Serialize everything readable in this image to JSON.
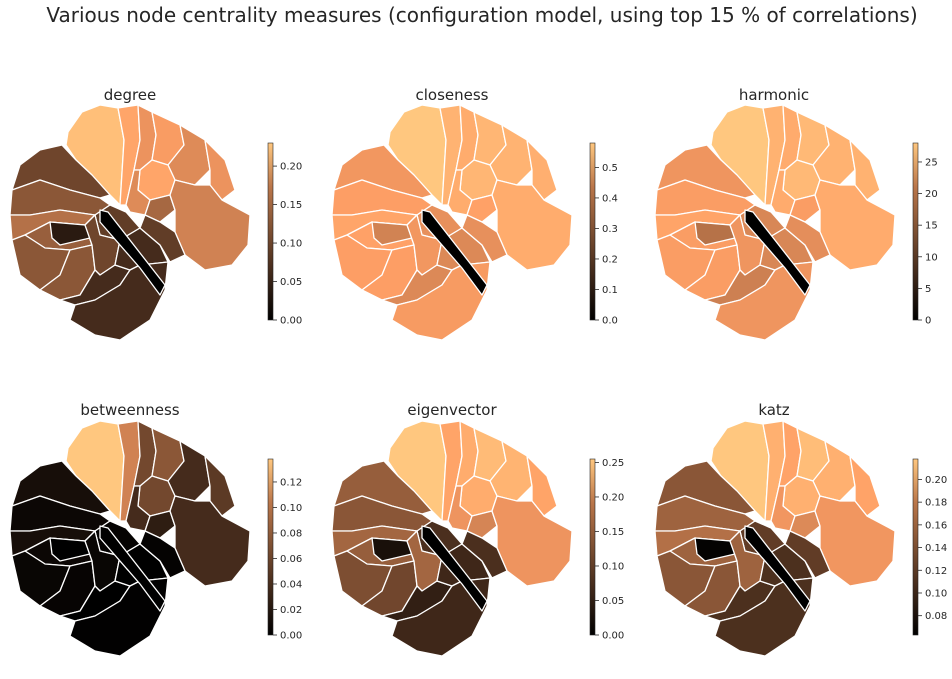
{
  "figure": {
    "title": "Various node centrality measures (configuration model, using top 15 % of correlations)",
    "colormap": "copper",
    "background": "#ffffff",
    "region_border_color": "#ffffff"
  },
  "chart_data": [
    {
      "type": "heatmap",
      "title": "degree",
      "colorbar": {
        "min": 0.0,
        "max": 0.23,
        "ticks": [
          0.0,
          0.05,
          0.1,
          0.15,
          0.2
        ],
        "tick_labels": [
          "0.00",
          "0.05",
          "0.10",
          "0.15",
          "0.20"
        ]
      },
      "region_values": [
        0.22,
        0.19,
        0.17,
        0.18,
        0.16,
        0.19,
        0.17,
        0.16,
        0.12,
        0.15,
        0.08,
        0.1,
        0.13,
        0.11,
        0.1,
        0.1,
        0.03,
        0.07,
        0.08,
        0.05,
        0.05,
        0.07,
        0.05,
        0.0
      ]
    },
    {
      "type": "heatmap",
      "title": "closeness",
      "colorbar": {
        "min": 0.0,
        "max": 0.58,
        "ticks": [
          0.0,
          0.1,
          0.2,
          0.3,
          0.4,
          0.5
        ],
        "tick_labels": [
          "0.0",
          "0.1",
          "0.2",
          "0.3",
          "0.4",
          "0.5"
        ]
      },
      "region_values": [
        0.58,
        0.52,
        0.5,
        0.53,
        0.52,
        0.53,
        0.51,
        0.5,
        0.47,
        0.5,
        0.44,
        0.46,
        0.48,
        0.47,
        0.46,
        0.46,
        0.38,
        0.42,
        0.44,
        0.4,
        0.4,
        0.42,
        0.45,
        0.0
      ]
    },
    {
      "type": "heatmap",
      "title": "harmonic",
      "colorbar": {
        "min": 0,
        "max": 28,
        "ticks": [
          0,
          5,
          10,
          15,
          20,
          25
        ],
        "tick_labels": [
          "0",
          "5",
          "10",
          "15",
          "20",
          "25"
        ]
      },
      "region_values": [
        28,
        25,
        24,
        26,
        25,
        26,
        25,
        24,
        22,
        24,
        21,
        22,
        23,
        22,
        22,
        22,
        16,
        19,
        21,
        18,
        19,
        20,
        21,
        0
      ]
    },
    {
      "type": "heatmap",
      "title": "betweenness",
      "colorbar": {
        "min": 0.0,
        "max": 0.138,
        "ticks": [
          0.0,
          0.02,
          0.04,
          0.06,
          0.08,
          0.1,
          0.12
        ],
        "tick_labels": [
          "0.00",
          "0.02",
          "0.04",
          "0.06",
          "0.08",
          "0.10",
          "0.12"
        ]
      },
      "region_values": [
        0.138,
        0.09,
        0.05,
        0.06,
        0.03,
        0.05,
        0.04,
        0.03,
        0.02,
        0.03,
        0.01,
        0.005,
        0.01,
        0.005,
        0.004,
        0.003,
        0.0,
        0.002,
        0.004,
        0.0,
        0.0,
        0.002,
        0.001,
        0.0
      ]
    },
    {
      "type": "heatmap",
      "title": "eigenvector",
      "colorbar": {
        "min": 0.0,
        "max": 0.255,
        "ticks": [
          0.0,
          0.05,
          0.1,
          0.15,
          0.2,
          0.25
        ],
        "tick_labels": [
          "0.00",
          "0.05",
          "0.10",
          "0.15",
          "0.20",
          "0.25"
        ]
      },
      "region_values": [
        0.255,
        0.21,
        0.22,
        0.24,
        0.23,
        0.22,
        0.21,
        0.19,
        0.17,
        0.19,
        0.12,
        0.11,
        0.13,
        0.12,
        0.1,
        0.09,
        0.02,
        0.06,
        0.13,
        0.04,
        0.05,
        0.06,
        0.05,
        0.0
      ]
    },
    {
      "type": "heatmap",
      "title": "katz",
      "colorbar": {
        "min": 0.063,
        "max": 0.218,
        "ticks": [
          0.08,
          0.1,
          0.12,
          0.14,
          0.16,
          0.18,
          0.2
        ],
        "tick_labels": [
          "0.08",
          "0.10",
          "0.12",
          "0.14",
          "0.16",
          "0.18",
          "0.20"
        ]
      },
      "region_values": [
        0.218,
        0.2,
        0.19,
        0.21,
        0.2,
        0.2,
        0.19,
        0.18,
        0.17,
        0.18,
        0.13,
        0.14,
        0.15,
        0.14,
        0.13,
        0.13,
        0.065,
        0.11,
        0.14,
        0.1,
        0.1,
        0.11,
        0.1,
        0.063
      ]
    }
  ]
}
